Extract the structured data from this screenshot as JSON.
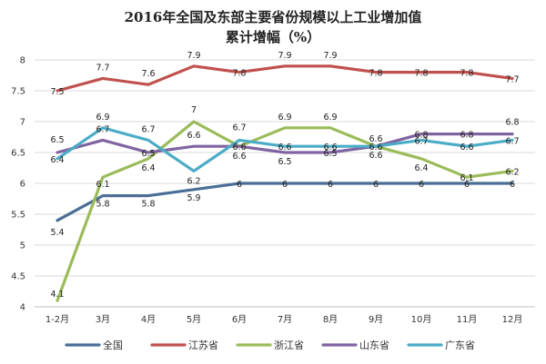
{
  "chart_data": {
    "type": "line",
    "title": "2016年全国及东部主要省份规模以上工业增加值",
    "subtitle": "累计增幅（%）",
    "xlabel": "",
    "ylabel": "",
    "categories": [
      "1-2月",
      "3月",
      "4月",
      "5月",
      "6月",
      "7月",
      "8月",
      "9月",
      "10月",
      "11月",
      "12月"
    ],
    "ylim": [
      4,
      8
    ],
    "yticks": [
      4,
      4.5,
      5,
      5.5,
      6,
      6.5,
      7,
      7.5,
      8
    ],
    "grid": true,
    "legend_position": "bottom",
    "series": [
      {
        "name": "全国",
        "color": "#4a6e95",
        "values": [
          5.4,
          5.8,
          5.8,
          5.9,
          6,
          6,
          6,
          6,
          6,
          6,
          6
        ]
      },
      {
        "name": "江苏省",
        "color": "#c0504d",
        "values": [
          7.5,
          7.7,
          7.6,
          7.9,
          7.8,
          7.9,
          7.9,
          7.8,
          7.8,
          7.8,
          7.7
        ]
      },
      {
        "name": "浙江省",
        "color": "#9bbb59",
        "values": [
          4.1,
          6.1,
          6.4,
          7,
          6.6,
          6.9,
          6.9,
          6.6,
          6.4,
          6.1,
          6.2
        ]
      },
      {
        "name": "山东省",
        "color": "#8064a2",
        "values": [
          6.5,
          6.7,
          6.5,
          6.6,
          6.6,
          6.5,
          6.5,
          6.6,
          6.8,
          6.8,
          6.8
        ]
      },
      {
        "name": "广东省",
        "color": "#4bacc6",
        "values": [
          6.4,
          6.9,
          6.7,
          6.2,
          6.7,
          6.6,
          6.6,
          6.6,
          6.7,
          6.6,
          6.7
        ]
      }
    ]
  }
}
